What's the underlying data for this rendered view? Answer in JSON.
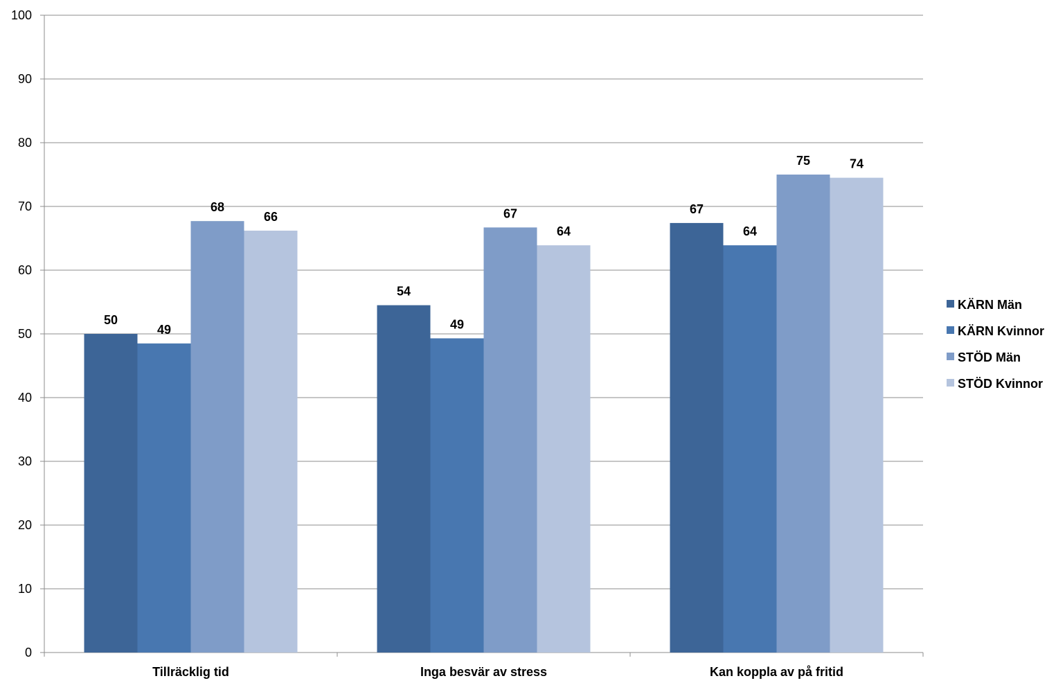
{
  "chart_data": {
    "type": "bar",
    "categories": [
      "Tillräcklig tid",
      "Inga besvär av stress",
      "Kan koppla av på fritid"
    ],
    "series": [
      {
        "name": "KÄRN Män",
        "color": "#3d6597",
        "values": [
          50.0,
          54.5,
          67.4
        ],
        "labels": [
          "50",
          "54",
          "67"
        ]
      },
      {
        "name": "KÄRN Kvinnor",
        "color": "#4877b0",
        "values": [
          48.5,
          49.3,
          63.9
        ],
        "labels": [
          "49",
          "49",
          "64"
        ]
      },
      {
        "name": "STÖD Män",
        "color": "#7f9cc8",
        "values": [
          67.7,
          66.7,
          75.0
        ],
        "labels": [
          "68",
          "67",
          "75"
        ]
      },
      {
        "name": "STÖD Kvinnor",
        "color": "#b5c4de",
        "values": [
          66.2,
          63.9,
          74.5
        ],
        "labels": [
          "66",
          "64",
          "74"
        ]
      }
    ],
    "ylim": [
      0,
      100
    ],
    "yticks": [
      "0",
      "10",
      "20",
      "30",
      "40",
      "50",
      "60",
      "70",
      "80",
      "90",
      "100"
    ],
    "grid": true,
    "legend_position": "right"
  }
}
